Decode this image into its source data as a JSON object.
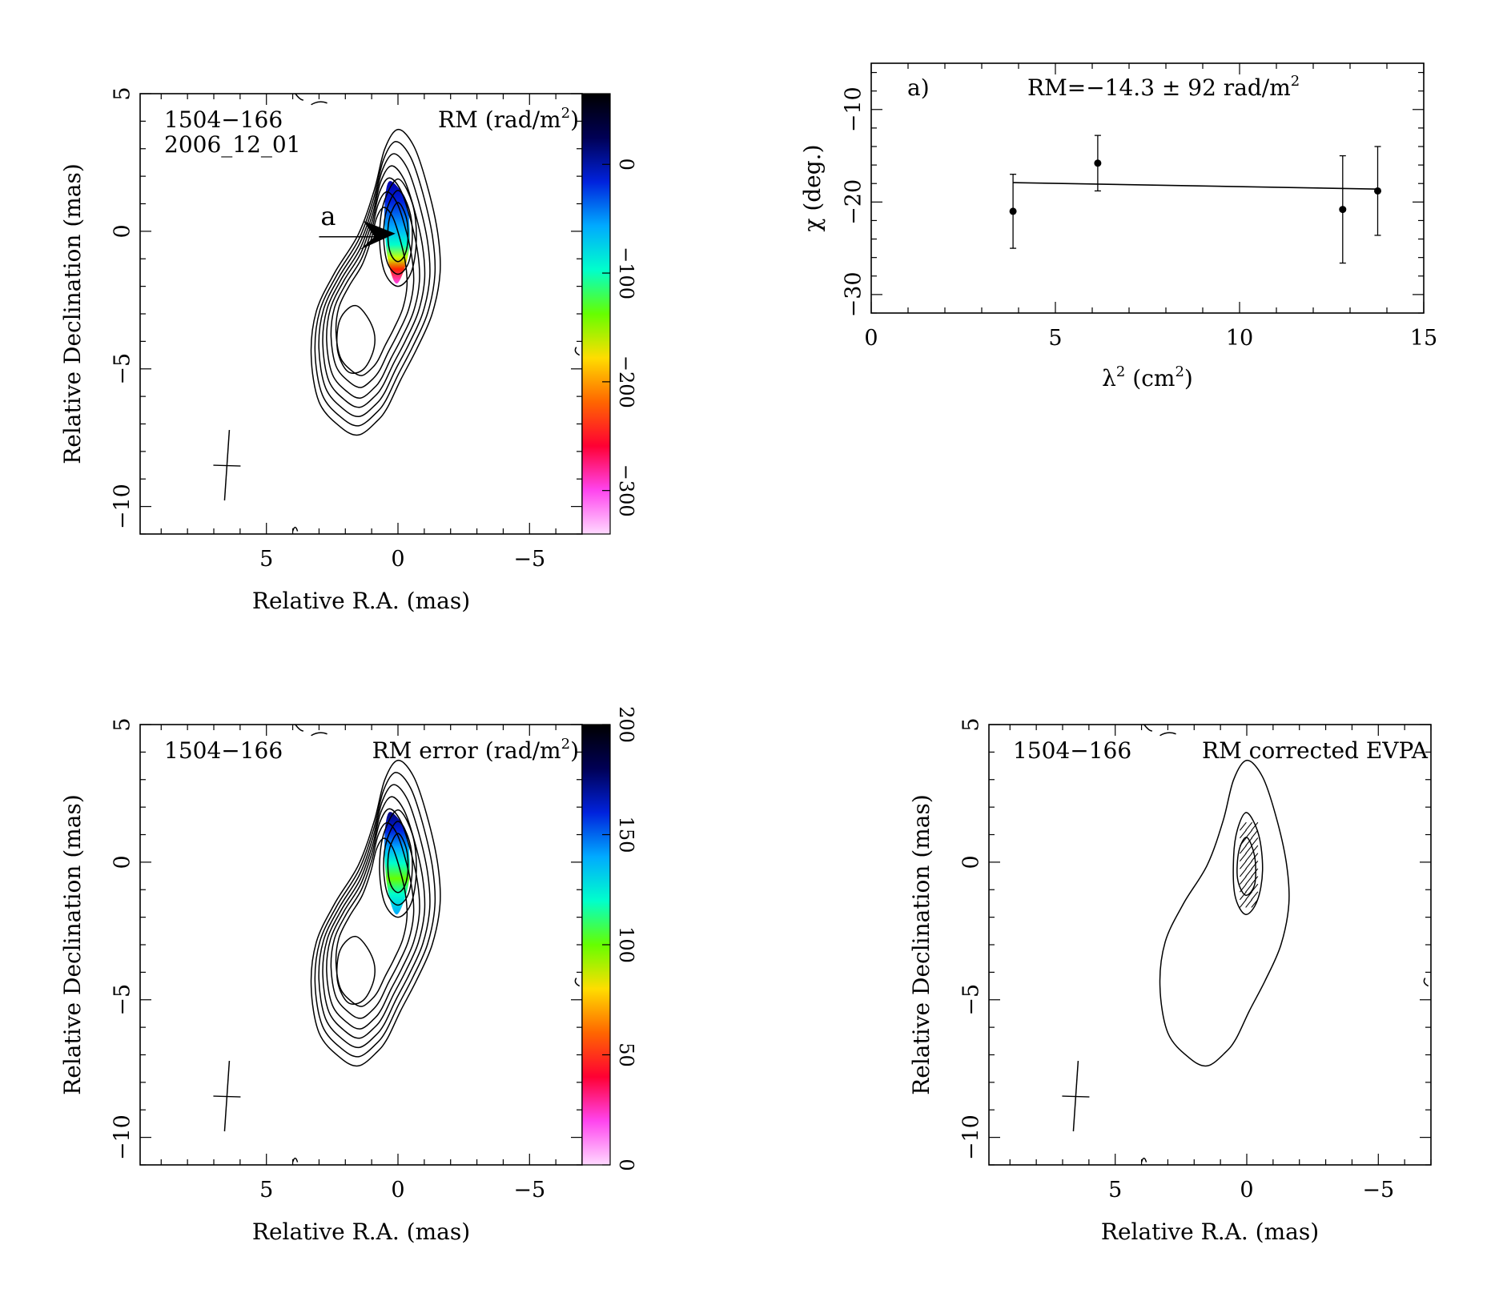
{
  "chart_data": [
    {
      "id": "rm-map",
      "type": "heatmap",
      "source": "1504−166",
      "date": "2006_12_01",
      "quantity_label": "RM (rad/m",
      "quantity_unit_suffix": "2",
      "quantity_label_close": ")",
      "xlabel": "Relative R.A. (mas)",
      "ylabel": "Relative Declination (mas)",
      "xlim": [
        9.8,
        -7
      ],
      "ylim": [
        -11,
        5
      ],
      "xticks": [
        "5",
        "0",
        "−5"
      ],
      "xtick_values": [
        5,
        0,
        -5
      ],
      "yticks": [
        "5",
        "0",
        "−5",
        "−10"
      ],
      "ytick_values": [
        5,
        0,
        -5,
        -10
      ],
      "colorbar": {
        "range": [
          -340,
          65
        ],
        "ticks": [
          "0",
          "−100",
          "−200",
          "−300"
        ],
        "tick_values": [
          0,
          -100,
          -200,
          -300
        ],
        "colors": [
          "#ffd9ff",
          "#ff44ee",
          "#ff0033",
          "#ff6600",
          "#ffdd00",
          "#66ff00",
          "#00ffcc",
          "#00aaff",
          "#0022dd",
          "#000055",
          "#000000"
        ]
      },
      "arrow_label": "a",
      "arrow_from": [
        3,
        -0.2
      ],
      "arrow_to": [
        0.1,
        -0.2
      ]
    },
    {
      "id": "rm-fit",
      "type": "scatter",
      "panel_label": "a)",
      "annotation": "RM=−14.3 ± 92 rad/m",
      "annotation_superscript": "2",
      "xlabel": "λ",
      "xlabel_sup": "2",
      "xlabel_unit": "(cm",
      "xlabel_unit_sup": "2",
      "xlabel_close": ")",
      "ylabel": "χ (deg.)",
      "xlim": [
        0,
        15
      ],
      "ylim": [
        -32,
        -5
      ],
      "xticks": [
        "0",
        "5",
        "10",
        "15"
      ],
      "xtick_values": [
        0,
        5,
        10,
        15
      ],
      "yticks": [
        "−10",
        "−20",
        "−30"
      ],
      "ytick_values": [
        -10,
        -20,
        -30
      ],
      "points": [
        {
          "x": 3.85,
          "y": -21.0,
          "err": 4.0
        },
        {
          "x": 6.15,
          "y": -15.8,
          "err": 3.0
        },
        {
          "x": 12.8,
          "y": -20.8,
          "err": 5.8
        },
        {
          "x": 13.75,
          "y": -18.8,
          "err": 4.8
        }
      ],
      "fit": {
        "x": [
          3.85,
          13.75
        ],
        "y": [
          -17.9,
          -18.6
        ]
      }
    },
    {
      "id": "rm-error-map",
      "type": "heatmap",
      "source": "1504−166",
      "quantity_label": "RM error (rad/m",
      "quantity_unit_suffix": "2",
      "quantity_label_close": ")",
      "xlabel": "Relative R.A. (mas)",
      "ylabel": "Relative Declination (mas)",
      "xlim": [
        9.8,
        -7
      ],
      "ylim": [
        -11,
        5
      ],
      "xticks": [
        "5",
        "0",
        "−5"
      ],
      "xtick_values": [
        5,
        0,
        -5
      ],
      "yticks": [
        "5",
        "0",
        "−5",
        "−10"
      ],
      "ytick_values": [
        5,
        0,
        -5,
        -10
      ],
      "colorbar": {
        "range": [
          0,
          200
        ],
        "ticks": [
          "0",
          "50",
          "100",
          "150",
          "200"
        ],
        "tick_values": [
          0,
          50,
          100,
          150,
          200
        ],
        "colors": [
          "#ffd9ff",
          "#ff44ee",
          "#ff0033",
          "#ff6600",
          "#ffdd00",
          "#66ff00",
          "#00ffcc",
          "#00aaff",
          "#0022dd",
          "#000055",
          "#000000"
        ]
      }
    },
    {
      "id": "evpa-map",
      "type": "heatmap",
      "source": "1504−166",
      "quantity_label": "RM corrected EVPA",
      "xlabel": "Relative R.A. (mas)",
      "ylabel": "Relative Declination (mas)",
      "xlim": [
        9.8,
        -7
      ],
      "ylim": [
        -11,
        5
      ],
      "xticks": [
        "5",
        "0",
        "−5"
      ],
      "xtick_values": [
        5,
        0,
        -5
      ],
      "yticks": [
        "5",
        "0",
        "−5",
        "−10"
      ],
      "ytick_values": [
        5,
        0,
        -5,
        -10
      ]
    }
  ]
}
